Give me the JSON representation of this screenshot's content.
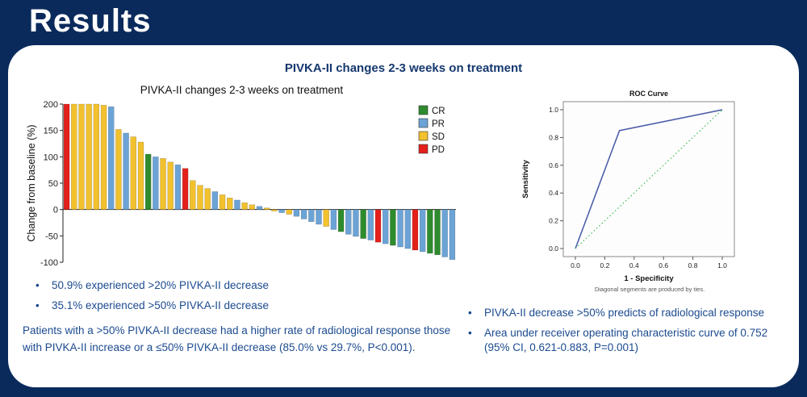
{
  "slide": {
    "title": "Results",
    "heading": "PIVKA-II changes 2-3 weeks on treatment"
  },
  "colors": {
    "background": "#0a2a5c",
    "heading_text": "#15386e",
    "body_text": "#1b4a8f",
    "cr": "#2e8b2e",
    "pr": "#6ba3d6",
    "sd": "#f2c12e",
    "pd": "#e3201b",
    "roc_line": "#4d5fa8",
    "roc_reference": "#2eb84a"
  },
  "left_panel": {
    "bullets": [
      "50.9% experienced >20% PIVKA-II decrease",
      "35.1% experienced >50% PIVKA-II decrease"
    ],
    "paragraph": "Patients with a >50% PIVKA-II decrease had a higher rate of radiological response those with PIVKA-II increase or a ≤50% PIVKA-II decrease (85.0% vs 29.7%, P<0.001)."
  },
  "right_panel": {
    "bullets": [
      "PIVKA-II decrease >50% predicts of radiological response",
      "Area under receiver operating characteristic curve of 0.752 (95% CI, 0.621-0.883, P=0.001)"
    ]
  },
  "chart_data": [
    {
      "type": "bar",
      "title": "PIVKA-II changes 2-3 weeks on treatment",
      "ylabel": "Change from baseline (%)",
      "ylim": [
        -100,
        200
      ],
      "yticks": [
        200,
        150,
        100,
        50,
        0,
        -50,
        -100
      ],
      "legend": [
        {
          "label": "CR",
          "color_key": "cr"
        },
        {
          "label": "PR",
          "color_key": "pr"
        },
        {
          "label": "SD",
          "color_key": "sd"
        },
        {
          "label": "PD",
          "color_key": "pd"
        }
      ],
      "bars": {
        "values": [
          200,
          200,
          200,
          200,
          200,
          198,
          195,
          152,
          145,
          138,
          128,
          105,
          100,
          97,
          90,
          85,
          78,
          55,
          46,
          40,
          34,
          28,
          22,
          18,
          13,
          9,
          6,
          3,
          -3,
          -6,
          -9,
          -13,
          -18,
          -23,
          -28,
          -32,
          -38,
          -42,
          -47,
          -51,
          -55,
          -58,
          -62,
          -65,
          -68,
          -71,
          -74,
          -77,
          -80,
          -83,
          -86,
          -90,
          -95
        ],
        "groups": [
          "PD",
          "SD",
          "SD",
          "SD",
          "SD",
          "SD",
          "PR",
          "SD",
          "PR",
          "SD",
          "SD",
          "CR",
          "PR",
          "SD",
          "SD",
          "PR",
          "PD",
          "SD",
          "SD",
          "SD",
          "PR",
          "SD",
          "SD",
          "PR",
          "SD",
          "SD",
          "PR",
          "SD",
          "SD",
          "PR",
          "SD",
          "PR",
          "PR",
          "PR",
          "PR",
          "SD",
          "PR",
          "CR",
          "PR",
          "PR",
          "CR",
          "PR",
          "PD",
          "PR",
          "CR",
          "PR",
          "PR",
          "PD",
          "PR",
          "CR",
          "CR",
          "PR",
          "PR"
        ]
      }
    },
    {
      "type": "line",
      "title": "ROC Curve",
      "xlabel": "1 - Specificity",
      "ylabel": "Sensitivity",
      "xlim": [
        0,
        1
      ],
      "ylim": [
        0,
        1
      ],
      "xticks": [
        0.0,
        0.2,
        0.4,
        0.6,
        0.8,
        1.0
      ],
      "yticks": [
        0.0,
        0.2,
        0.4,
        0.6,
        0.8,
        1.0
      ],
      "series": [
        {
          "name": "roc-curve",
          "color_key": "roc_line",
          "style": "solid",
          "points": [
            [
              0,
              0
            ],
            [
              0.3,
              0.85
            ],
            [
              1,
              1
            ]
          ]
        },
        {
          "name": "reference-diagonal",
          "color_key": "roc_reference",
          "style": "dotted",
          "points": [
            [
              0,
              0
            ],
            [
              1,
              1
            ]
          ]
        }
      ],
      "footnote": "Diagonal segments are produced by ties."
    }
  ]
}
